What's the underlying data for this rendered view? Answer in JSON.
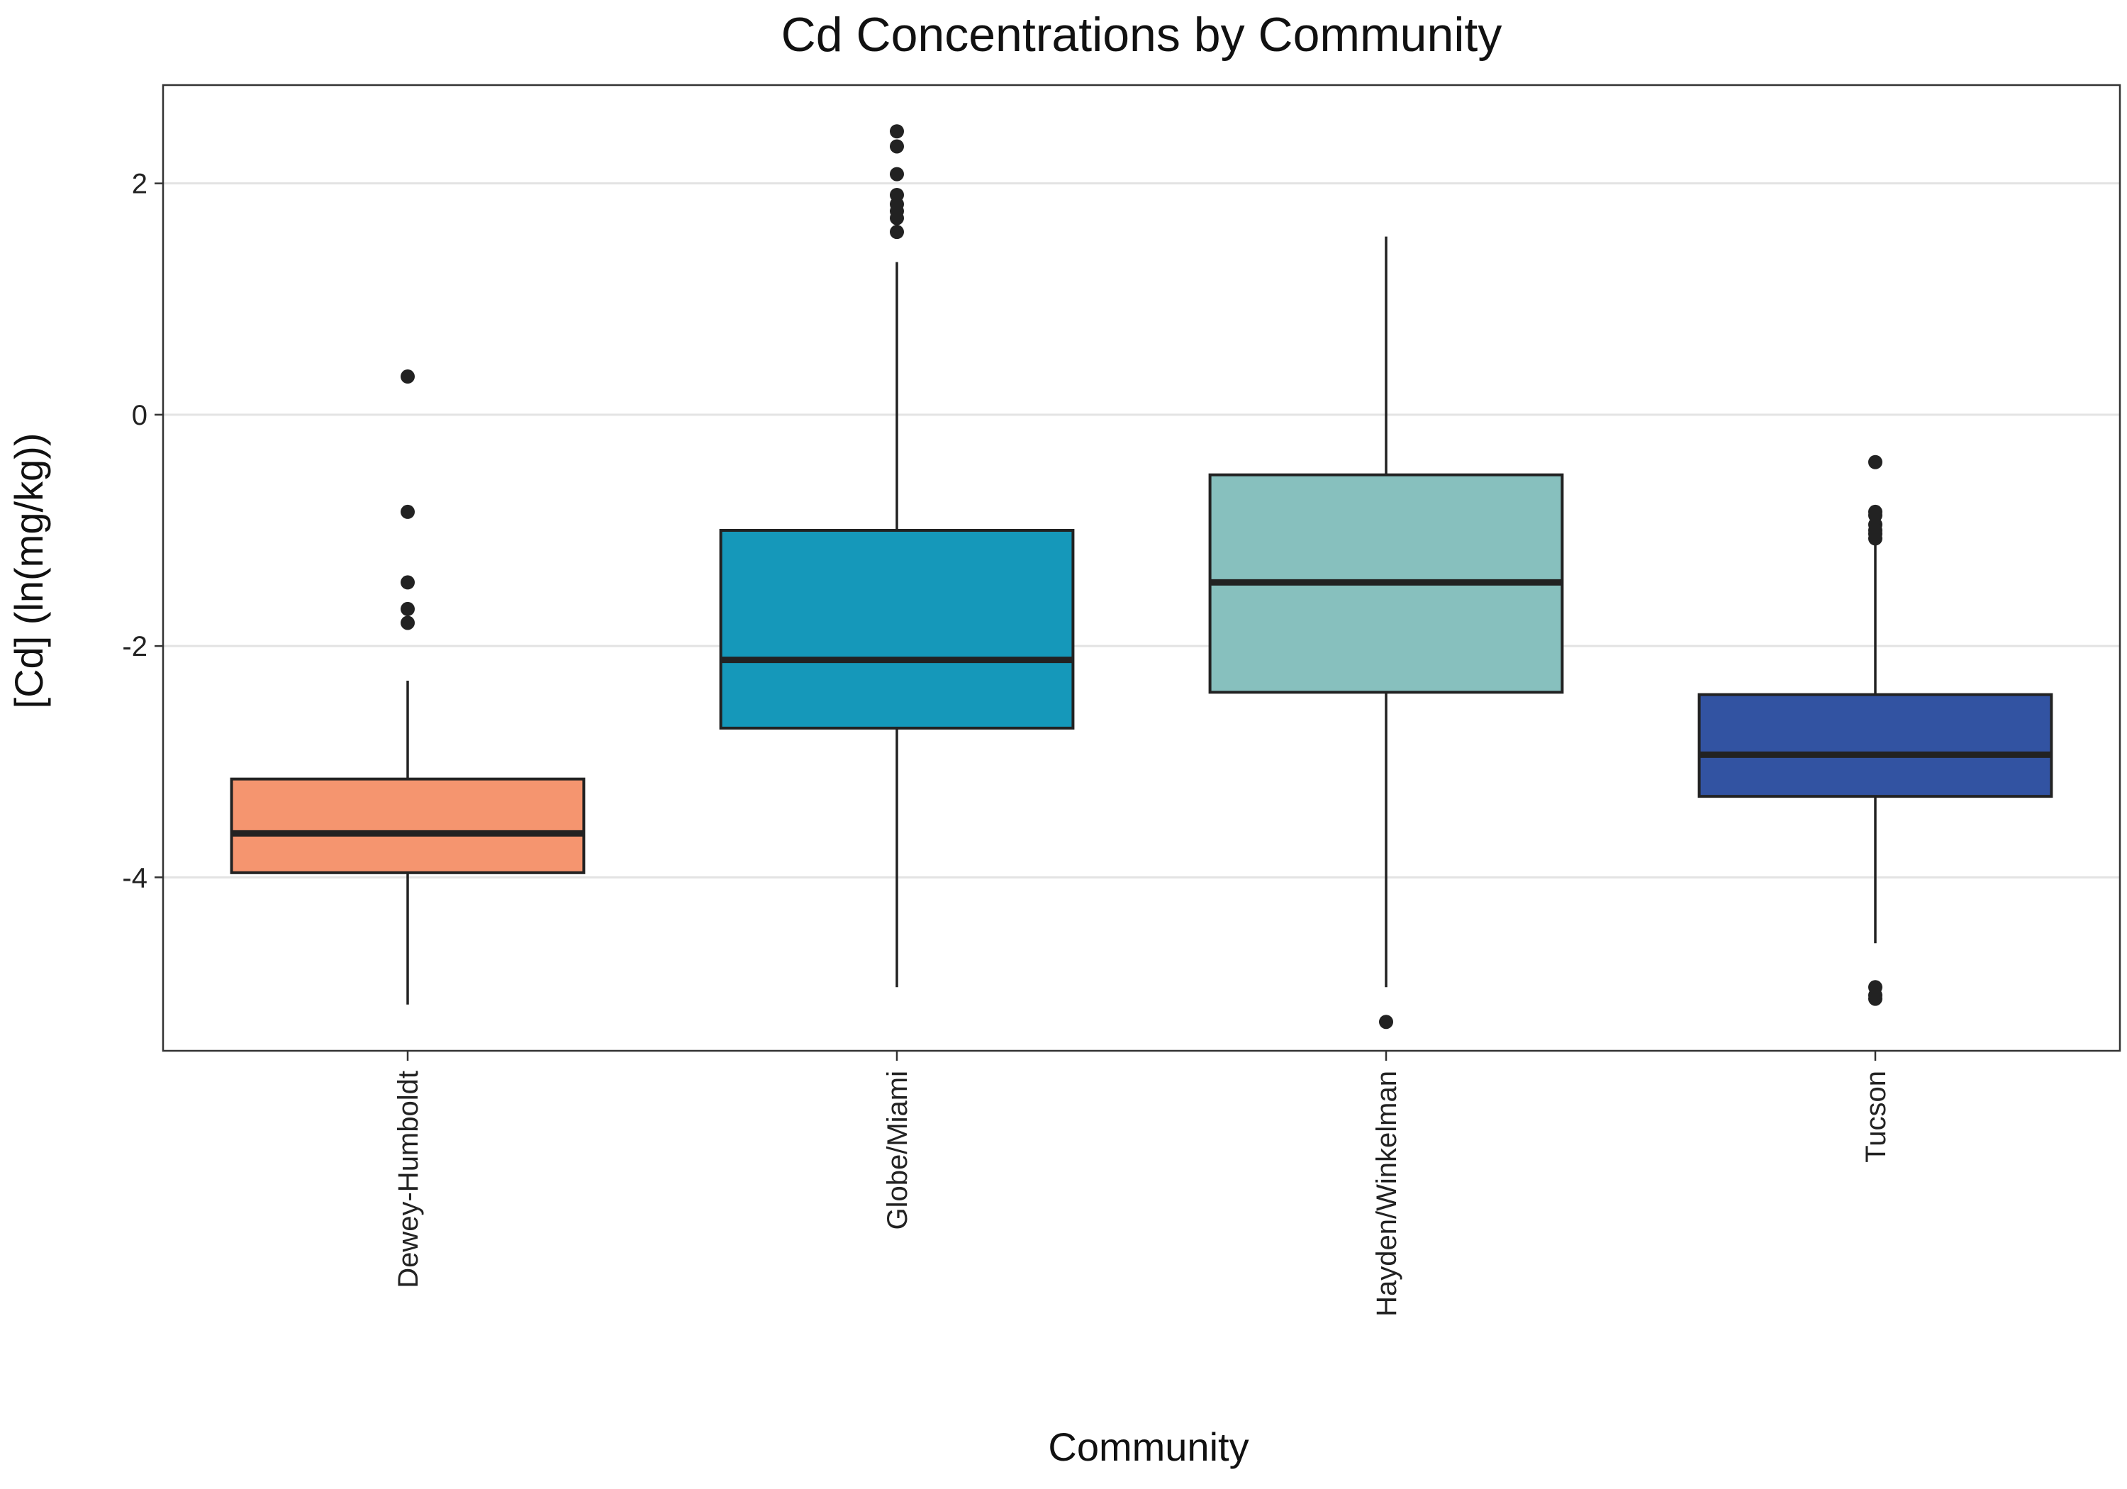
{
  "chart_data": {
    "type": "box",
    "title": "Cd Concentrations by Community",
    "xlabel": "Community",
    "ylabel": "[Cd] (ln(mg/kg))",
    "ylim": [
      -5.5,
      2.85
    ],
    "yticks": [
      2,
      0,
      -2,
      -4
    ],
    "ytick_labels": [
      "2",
      "0",
      "-2",
      "-4"
    ],
    "grid": "horizontal major",
    "legend": "none",
    "categories": [
      "Dewey-Humboldt",
      "Globe/Miami",
      "Hayden/Winkelman",
      "Tucson"
    ],
    "boxes": [
      {
        "category": "Dewey-Humboldt",
        "whisker_low": -5.1,
        "q1": -3.96,
        "median": -3.62,
        "q3": -3.15,
        "whisker_high": -2.3,
        "outliers": [
          0.33,
          -0.84,
          -1.45,
          -1.68,
          -1.8
        ],
        "fill": "#f5956f"
      },
      {
        "category": "Globe/Miami",
        "whisker_low": -4.95,
        "q1": -2.71,
        "median": -2.12,
        "q3": -1.0,
        "whisker_high": 1.32,
        "outliers": [
          2.45,
          2.32,
          2.08,
          1.9,
          1.82,
          1.76,
          1.7,
          1.58
        ],
        "fill": "#1598ba"
      },
      {
        "category": "Hayden/Winkelman",
        "whisker_low": -4.95,
        "q1": -2.4,
        "median": -1.45,
        "q3": -0.52,
        "whisker_high": 1.54,
        "outliers": [
          -5.25
        ],
        "fill": "#87c0be"
      },
      {
        "category": "Tucson",
        "whisker_low": -4.57,
        "q1": -3.3,
        "median": -2.94,
        "q3": -2.42,
        "whisker_high": -1.1,
        "outliers": [
          -0.41,
          -0.84,
          -0.87,
          -0.95,
          -1.0,
          -1.03,
          -1.07,
          -4.95,
          -5.02,
          -5.05
        ],
        "fill": "#3253a2"
      }
    ]
  }
}
